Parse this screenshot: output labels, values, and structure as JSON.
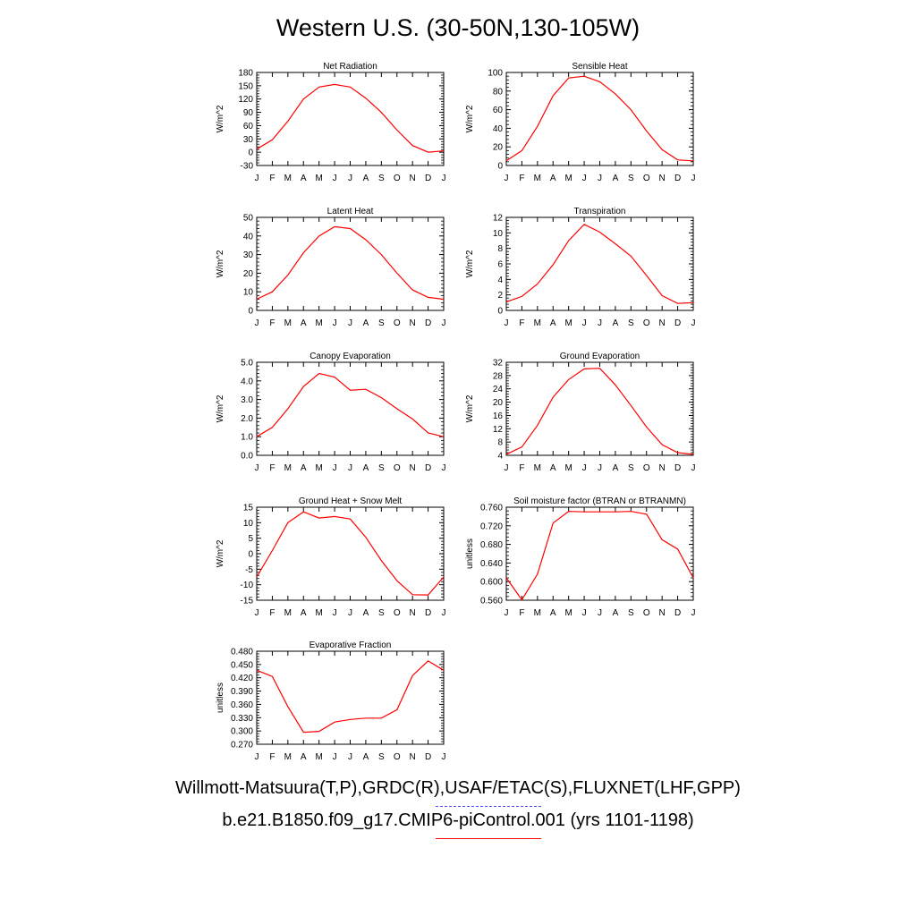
{
  "title": "Western U.S. (30-50N,130-105W)",
  "legend": {
    "line1": "Willmott-Matsuura(T,P),GRDC(R),USAF/ETAC(S),FLUXNET(LHF,GPP)",
    "line1_color": "#4d4dff",
    "line2": "b.e21.B1850.f09_g17.CMIP6-piControl.001 (yrs 1101-1198)",
    "line2_color": "#ff0000"
  },
  "chart_data": [
    {
      "type": "line",
      "title": "Net Radiation",
      "ylabel": "W/m^2",
      "ylim": [
        -30,
        180
      ],
      "yticks": [
        "-30",
        "0",
        "30",
        "60",
        "90",
        "120",
        "150",
        "180"
      ],
      "x": [
        "J",
        "F",
        "M",
        "A",
        "M",
        "J",
        "J",
        "A",
        "S",
        "O",
        "N",
        "D",
        "J"
      ],
      "series": [
        {
          "color": "#ff0000",
          "values": [
            7,
            28,
            70,
            120,
            147,
            153,
            147,
            122,
            90,
            50,
            15,
            0,
            3
          ]
        }
      ]
    },
    {
      "type": "line",
      "title": "Sensible Heat",
      "ylabel": "W/m^2",
      "ylim": [
        0,
        100
      ],
      "yticks": [
        "0",
        "20",
        "40",
        "60",
        "80",
        "100"
      ],
      "x": [
        "J",
        "F",
        "M",
        "A",
        "M",
        "J",
        "J",
        "A",
        "S",
        "O",
        "N",
        "D",
        "J"
      ],
      "series": [
        {
          "color": "#ff0000",
          "values": [
            5,
            16,
            42,
            75,
            94,
            96,
            90,
            77,
            60,
            37,
            17,
            6,
            5
          ]
        }
      ]
    },
    {
      "type": "line",
      "title": "Latent Heat",
      "ylabel": "W/m^2",
      "ylim": [
        0,
        50
      ],
      "yticks": [
        "0",
        "10",
        "20",
        "30",
        "40",
        "50"
      ],
      "x": [
        "J",
        "F",
        "M",
        "A",
        "M",
        "J",
        "J",
        "A",
        "S",
        "O",
        "N",
        "D",
        "J"
      ],
      "series": [
        {
          "color": "#ff0000",
          "values": [
            6,
            10,
            19,
            31,
            40,
            45,
            44,
            38,
            30,
            20,
            11,
            7,
            6
          ]
        }
      ]
    },
    {
      "type": "line",
      "title": "Transpiration",
      "ylabel": "W/m^2",
      "ylim": [
        0,
        12
      ],
      "yticks": [
        "0",
        "2",
        "4",
        "6",
        "8",
        "10",
        "12"
      ],
      "x": [
        "J",
        "F",
        "M",
        "A",
        "M",
        "J",
        "J",
        "A",
        "S",
        "O",
        "N",
        "D",
        "J"
      ],
      "series": [
        {
          "color": "#ff0000",
          "values": [
            1.1,
            1.8,
            3.4,
            5.9,
            9.0,
            11.1,
            10.1,
            8.6,
            7.0,
            4.5,
            1.9,
            0.9,
            1.0
          ]
        }
      ]
    },
    {
      "type": "line",
      "title": "Canopy Evaporation",
      "ylabel": "W/m^2",
      "ylim": [
        0,
        5
      ],
      "yticks": [
        "0.0",
        "1.0",
        "2.0",
        "3.0",
        "4.0",
        "5.0"
      ],
      "x": [
        "J",
        "F",
        "M",
        "A",
        "M",
        "J",
        "J",
        "A",
        "S",
        "O",
        "N",
        "D",
        "J"
      ],
      "series": [
        {
          "color": "#ff0000",
          "values": [
            1.0,
            1.5,
            2.5,
            3.7,
            4.4,
            4.2,
            3.5,
            3.55,
            3.1,
            2.5,
            1.95,
            1.2,
            1.0
          ]
        }
      ]
    },
    {
      "type": "line",
      "title": "Ground Evaporation",
      "ylabel": "W/m^2",
      "ylim": [
        4,
        32
      ],
      "yticks": [
        "4",
        "8",
        "12",
        "16",
        "20",
        "24",
        "28",
        "32"
      ],
      "x": [
        "J",
        "F",
        "M",
        "A",
        "M",
        "J",
        "J",
        "A",
        "S",
        "O",
        "N",
        "D",
        "J"
      ],
      "series": [
        {
          "color": "#ff0000",
          "values": [
            4.3,
            6.5,
            13,
            21.5,
            26.8,
            30,
            30.2,
            25.2,
            19,
            12.5,
            7.2,
            4.8,
            4.3
          ]
        }
      ]
    },
    {
      "type": "line",
      "title": "Ground Heat + Snow Melt",
      "ylabel": "W/m^2",
      "ylim": [
        -15,
        15
      ],
      "yticks": [
        "-15",
        "-10",
        "-5",
        "0",
        "5",
        "10",
        "15"
      ],
      "x": [
        "J",
        "F",
        "M",
        "A",
        "M",
        "J",
        "J",
        "A",
        "S",
        "O",
        "N",
        "D",
        "J"
      ],
      "series": [
        {
          "color": "#ff0000",
          "values": [
            -7.5,
            1,
            10,
            13.5,
            11.5,
            12,
            11.2,
            5.3,
            -2.2,
            -8.7,
            -13.2,
            -13.3,
            -7.5
          ]
        }
      ]
    },
    {
      "type": "line",
      "title": "Soil moisture factor (BTRAN or BTRANMN)",
      "ylabel": "unitless",
      "ylim": [
        0.56,
        0.76
      ],
      "yticks": [
        "0.560",
        "0.600",
        "0.640",
        "0.680",
        "0.720",
        "0.760"
      ],
      "x": [
        "J",
        "F",
        "M",
        "A",
        "M",
        "J",
        "J",
        "A",
        "S",
        "O",
        "N",
        "D",
        "J"
      ],
      "series": [
        {
          "color": "#ff0000",
          "values": [
            0.608,
            0.561,
            0.616,
            0.726,
            0.751,
            0.75,
            0.75,
            0.75,
            0.751,
            0.745,
            0.69,
            0.67,
            0.608
          ]
        }
      ]
    },
    {
      "type": "line",
      "title": "Evaporative Fraction",
      "ylabel": "unitless",
      "ylim": [
        0.27,
        0.48
      ],
      "yticks": [
        "0.270",
        "0.300",
        "0.330",
        "0.360",
        "0.390",
        "0.420",
        "0.450",
        "0.480"
      ],
      "x": [
        "J",
        "F",
        "M",
        "A",
        "M",
        "J",
        "J",
        "A",
        "S",
        "O",
        "N",
        "D",
        "J"
      ],
      "series": [
        {
          "color": "#ff0000",
          "values": [
            0.437,
            0.423,
            0.355,
            0.297,
            0.299,
            0.32,
            0.326,
            0.329,
            0.329,
            0.348,
            0.425,
            0.458,
            0.437
          ]
        }
      ]
    }
  ]
}
